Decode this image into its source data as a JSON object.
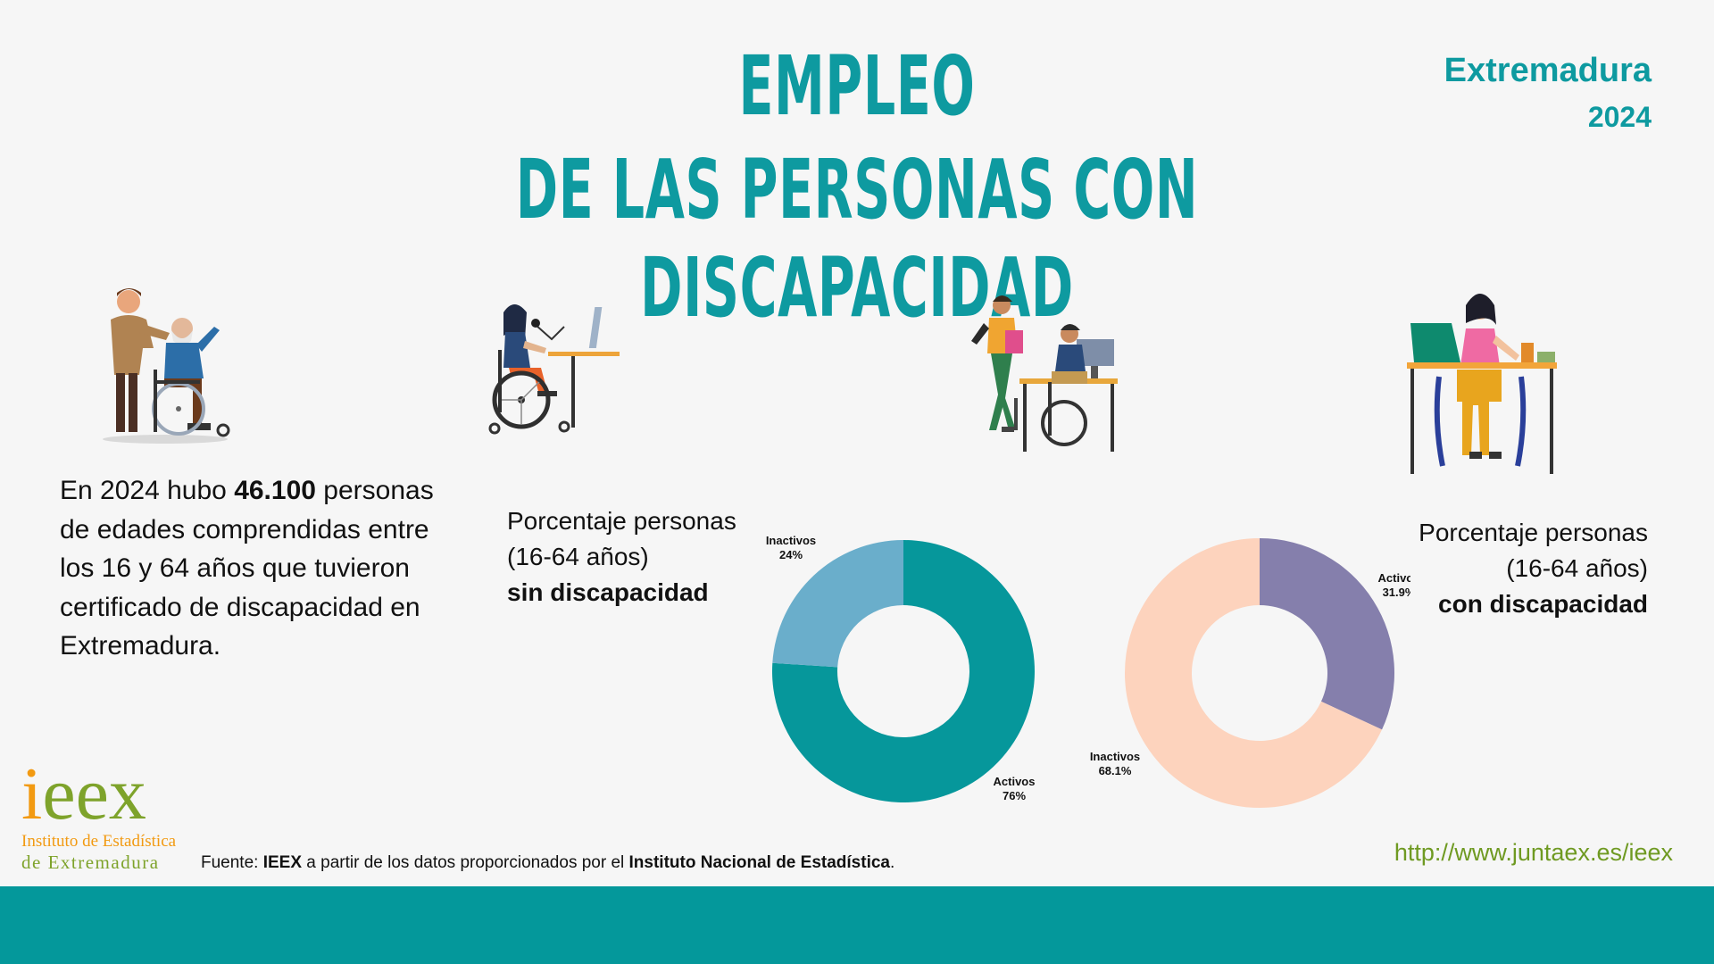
{
  "header": {
    "title_line1": "EMPLEO",
    "title_line2": "DE LAS PERSONAS CON DISCAPACIDAD",
    "region": "Extremadura",
    "year": "2024"
  },
  "intro": {
    "text_before": "En 2024 hubo ",
    "highlight": "46.100",
    "text_after": " personas de edades comprendidas entre los 16 y 64 años que tuvieron certificado de discapacidad en Extremadura."
  },
  "labels": {
    "left_line1": "Porcentaje personas",
    "left_line2": "(16-64 años)",
    "left_line3": "sin discapacidad",
    "right_line1": "Porcentaje personas",
    "right_line2": "(16-64 años)",
    "right_line3": "con discapacidad"
  },
  "chart_data": [
    {
      "type": "pie",
      "title": "Porcentaje personas (16-64 años) sin discapacidad",
      "series": [
        {
          "name": "Activos",
          "value": 76,
          "label": "76%",
          "color": "#06979b"
        },
        {
          "name": "Inactivos",
          "value": 24,
          "label": "24%",
          "color": "#6aaecb"
        }
      ]
    },
    {
      "type": "pie",
      "title": "Porcentaje personas (16-64 años) con discapacidad",
      "series": [
        {
          "name": "Activos",
          "value": 31.9,
          "label": "31.9%",
          "color": "#857fac"
        },
        {
          "name": "Inactivos",
          "value": 68.1,
          "label": "68.1%",
          "color": "#fdd3bd"
        }
      ]
    }
  ],
  "logo": {
    "mark_i": "i",
    "mark_e": "eex",
    "line1": "Instituto de Estadística",
    "line2": "de Extremadura"
  },
  "footer": {
    "source_prefix": "Fuente: ",
    "source_org": "IEEX",
    "source_mid": " a partir de los datos proporcionados por el ",
    "source_ine": "Instituto Nacional de Estadística",
    "source_end": ".",
    "url": "http://www.juntaex.es/ieex"
  }
}
